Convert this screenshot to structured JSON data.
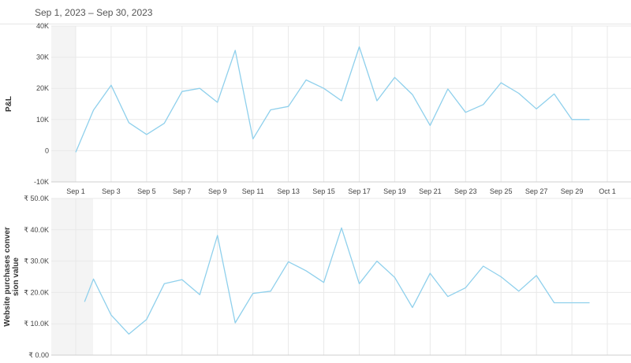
{
  "date_range": "Sep 1, 2023 – Sep 30, 2023",
  "colors": {
    "line": "#8fd0ec",
    "grid": "#e9e9e9",
    "axis": "#cfcfcf",
    "shade": "#f4f4f4",
    "text": "#444444"
  },
  "chart_data": [
    {
      "type": "line",
      "ylabel": "P&L",
      "ylim": [
        -10000,
        40000
      ],
      "yticks": [
        {
          "value": 40000,
          "label": "40K"
        },
        {
          "value": 30000,
          "label": "30K"
        },
        {
          "value": 20000,
          "label": "20K"
        },
        {
          "value": 10000,
          "label": "10K"
        },
        {
          "value": 0,
          "label": "0"
        },
        {
          "value": -10000,
          "label": "-10K"
        }
      ],
      "xticks": [
        "Sep 1",
        "Sep 3",
        "Sep 5",
        "Sep 7",
        "Sep 9",
        "Sep 11",
        "Sep 13",
        "Sep 15",
        "Sep 17",
        "Sep 19",
        "Sep 21",
        "Sep 23",
        "Sep 25",
        "Sep 27",
        "Sep 29",
        "Oct 1"
      ],
      "series": [
        {
          "x": [
            1,
            2,
            3,
            4,
            5,
            6,
            7,
            8,
            9,
            10,
            11,
            12,
            13,
            14,
            15,
            16,
            17,
            18,
            19,
            20,
            21,
            22,
            23,
            24,
            25,
            26,
            27,
            28,
            29,
            30
          ],
          "values": [
            -500,
            13000,
            21000,
            9000,
            5200,
            8800,
            19000,
            20000,
            15500,
            32200,
            3800,
            13100,
            14200,
            22700,
            20000,
            16000,
            33300,
            16000,
            23500,
            18000,
            8100,
            19800,
            12300,
            14800,
            21800,
            18400,
            13400,
            18200,
            10000,
            10000
          ]
        }
      ]
    },
    {
      "type": "line",
      "ylabel": "Website purchases conversion value",
      "ylabel_lines": [
        "Website purchases conver",
        "sion value"
      ],
      "ylim": [
        0,
        50000
      ],
      "yticks": [
        {
          "value": 50000,
          "label": "₹ 50.0K"
        },
        {
          "value": 40000,
          "label": "₹ 40.0K"
        },
        {
          "value": 30000,
          "label": "₹ 30.0K"
        },
        {
          "value": 20000,
          "label": "₹ 20.0K"
        },
        {
          "value": 10000,
          "label": "₹ 10.0K"
        },
        {
          "value": 0,
          "label": "₹ 0.00"
        }
      ],
      "series": [
        {
          "x": [
            1.5,
            2,
            3,
            4,
            5,
            6,
            7,
            8,
            9,
            10,
            11,
            12,
            13,
            14,
            15,
            16,
            17,
            18,
            19,
            20,
            21,
            22,
            23,
            24,
            25,
            26,
            27,
            28,
            29,
            30
          ],
          "values": [
            17000,
            24300,
            12800,
            6700,
            11400,
            22800,
            24100,
            19300,
            38200,
            10300,
            19700,
            20400,
            29800,
            26900,
            23200,
            40600,
            22800,
            30000,
            24800,
            15200,
            26100,
            18700,
            21500,
            28400,
            25000,
            20400,
            25400,
            16700,
            16700,
            16700
          ]
        }
      ]
    }
  ]
}
